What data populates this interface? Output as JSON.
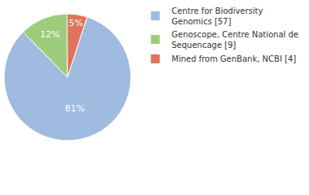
{
  "chart_data": {
    "type": "pie",
    "categories": [
      "Centre for Biodiversity Genomics [57]",
      "Genoscope, Centre National de Sequencage [9]",
      "Mined from GenBank, NCBI [4]"
    ],
    "values": [
      81,
      12,
      5
    ],
    "value_labels": [
      "81%",
      "12%",
      "5%"
    ],
    "colors": [
      "#9fbbe0",
      "#9ccc7c",
      "#e0735b"
    ],
    "data_labels": true,
    "legend": "upper right"
  }
}
